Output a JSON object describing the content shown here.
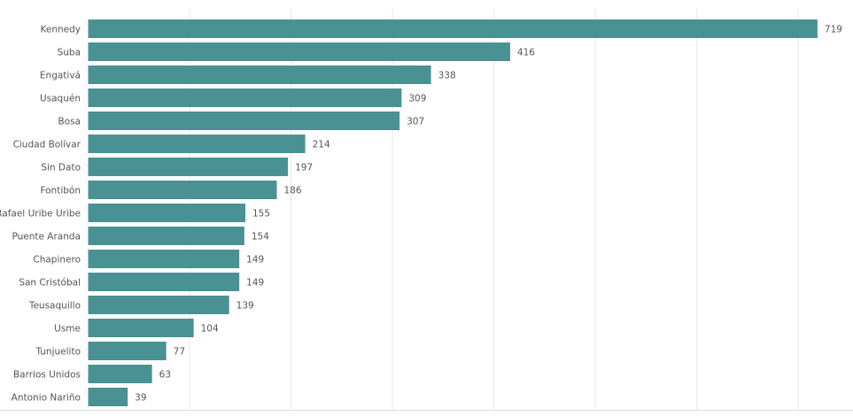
{
  "chart_data": {
    "type": "bar",
    "orientation": "horizontal",
    "title": "",
    "xlabel": "",
    "ylabel": "",
    "categories": [
      "Kennedy",
      "Suba",
      "Engativá",
      "Usaquén",
      "Bosa",
      "Ciudad Bolívar",
      "Sin Dato",
      "Fontibón",
      "Rafael Uribe Uribe",
      "Puente Aranda",
      "Chapinero",
      "San Cristóbal",
      "Teusaquillo",
      "Usme",
      "Tunjuelito",
      "Barrios Unidos",
      "Antonio Nariño"
    ],
    "values": [
      719,
      416,
      338,
      309,
      307,
      214,
      197,
      186,
      155,
      154,
      149,
      149,
      139,
      104,
      77,
      63,
      39
    ],
    "xlim": [
      0,
      754
    ],
    "gridlines": [
      100,
      200,
      300,
      400,
      500,
      600,
      700
    ],
    "grid": true,
    "data_labels": true,
    "bar_color": "#4a9194"
  }
}
